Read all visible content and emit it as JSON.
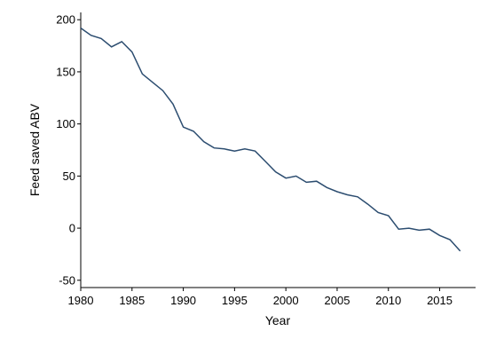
{
  "chart_data": {
    "type": "line",
    "xlabel": "Year",
    "ylabel": "Feed saved ABV",
    "xlim": [
      1980,
      2018.5
    ],
    "ylim": [
      -57,
      207
    ],
    "xticks": [
      1980,
      1985,
      1990,
      1995,
      2000,
      2005,
      2010,
      2015
    ],
    "yticks": [
      -50,
      0,
      50,
      100,
      150,
      200
    ],
    "grid": false,
    "series": [
      {
        "color": "#2c4d70",
        "x": [
          1980,
          1981,
          1982,
          1983,
          1984,
          1985,
          1986,
          1987,
          1988,
          1989,
          1990,
          1991,
          1992,
          1993,
          1994,
          1995,
          1996,
          1997,
          1998,
          1999,
          2000,
          2001,
          2002,
          2003,
          2004,
          2005,
          2006,
          2007,
          2008,
          2009,
          2010,
          2011,
          2012,
          2013,
          2014,
          2015,
          2016,
          2017
        ],
        "y": [
          192,
          185,
          182,
          174,
          179,
          169,
          148,
          140,
          132,
          119,
          97,
          93,
          83,
          77,
          76,
          74,
          76,
          74,
          64,
          54,
          48,
          50,
          44,
          45,
          39,
          35,
          32,
          30,
          23,
          15,
          12,
          -1,
          0,
          -2,
          -1,
          -7,
          -11,
          -22
        ]
      }
    ]
  }
}
